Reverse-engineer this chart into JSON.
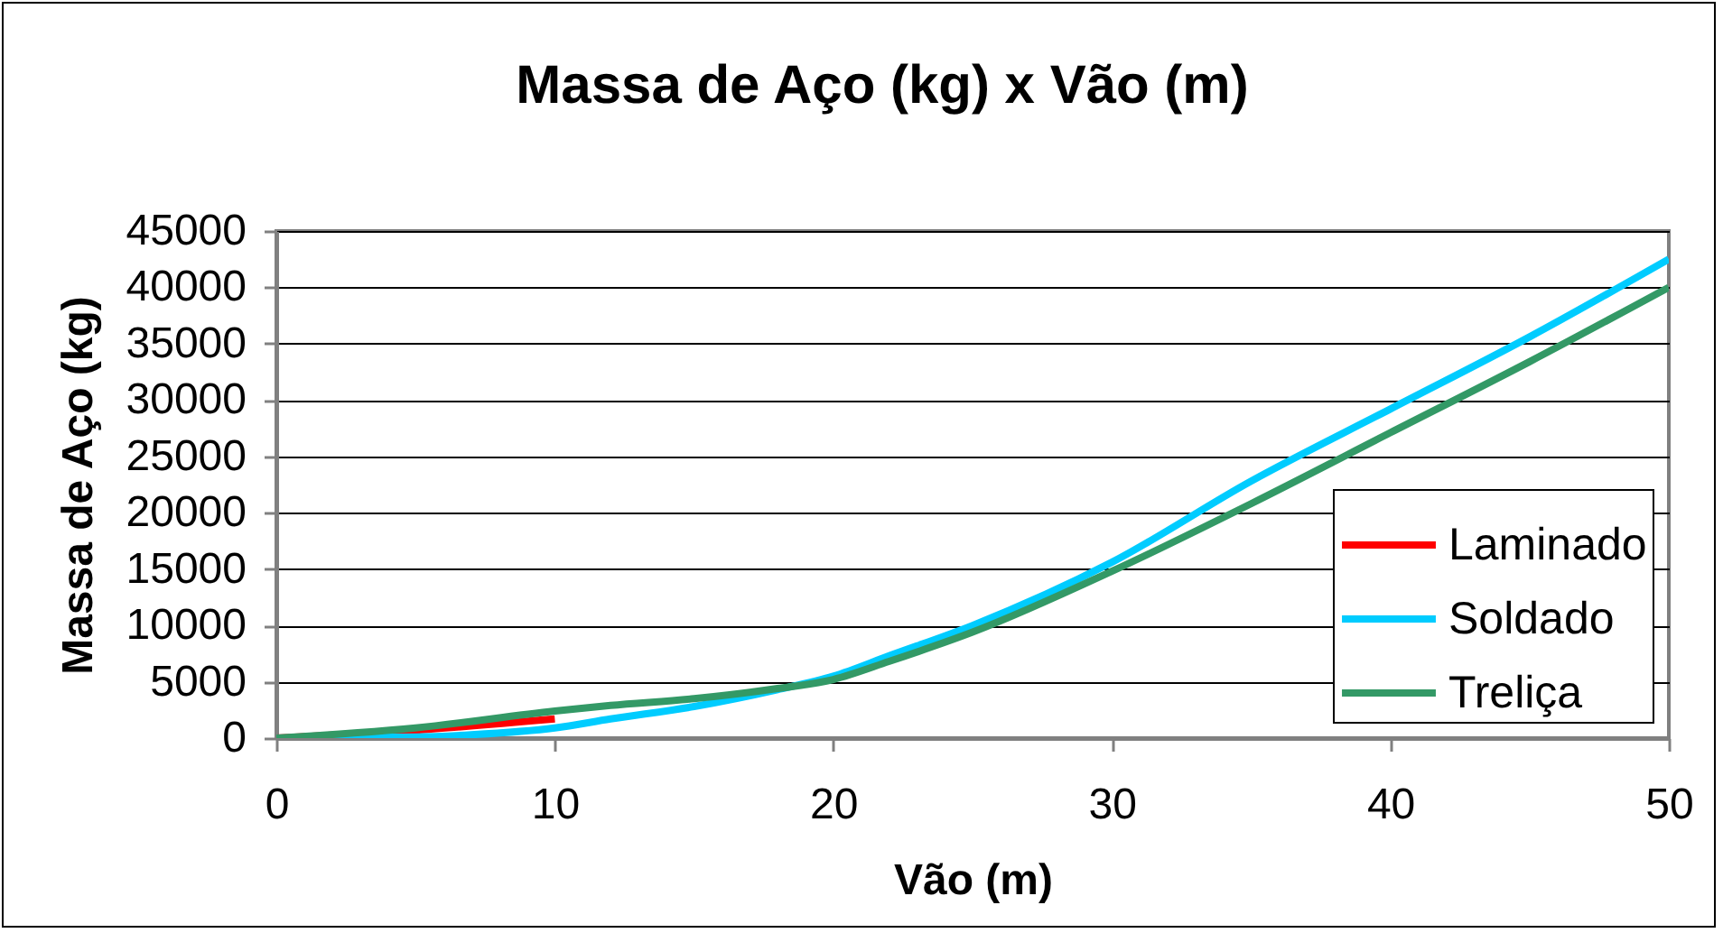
{
  "chart_data": {
    "type": "line",
    "title": "Massa de Aço (kg) x Vão (m)",
    "xlabel": "Vão (m)",
    "ylabel": "Massa de Aço (kg)",
    "xlim": [
      0,
      50
    ],
    "xticks": [
      0,
      10,
      20,
      30,
      40,
      50
    ],
    "ylim": [
      0,
      45000
    ],
    "yticks": [
      0,
      5000,
      10000,
      15000,
      20000,
      25000,
      30000,
      35000,
      40000,
      45000
    ],
    "grid": "y",
    "legend": "bottom right",
    "series": [
      {
        "name": "Laminado",
        "color": "#ff0000",
        "x": [
          0,
          5,
          10
        ],
        "values": [
          0,
          700,
          1700
        ]
      },
      {
        "name": "Soldado",
        "color": "#00ccff",
        "x": [
          0,
          5,
          7,
          10,
          12,
          15,
          18,
          20,
          22,
          25,
          30,
          35,
          40,
          45,
          50
        ],
        "values": [
          0,
          100,
          300,
          900,
          1700,
          2800,
          4300,
          5500,
          7300,
          10000,
          15600,
          22800,
          29200,
          35600,
          42500
        ]
      },
      {
        "name": "Treliça",
        "color": "#339966",
        "x": [
          0,
          5,
          10,
          12,
          15,
          18,
          20,
          22,
          25,
          30,
          35,
          40,
          45,
          50
        ],
        "values": [
          0,
          900,
          2400,
          2900,
          3500,
          4400,
          5200,
          6800,
          9400,
          14800,
          20800,
          27100,
          33400,
          40000
        ]
      }
    ]
  }
}
